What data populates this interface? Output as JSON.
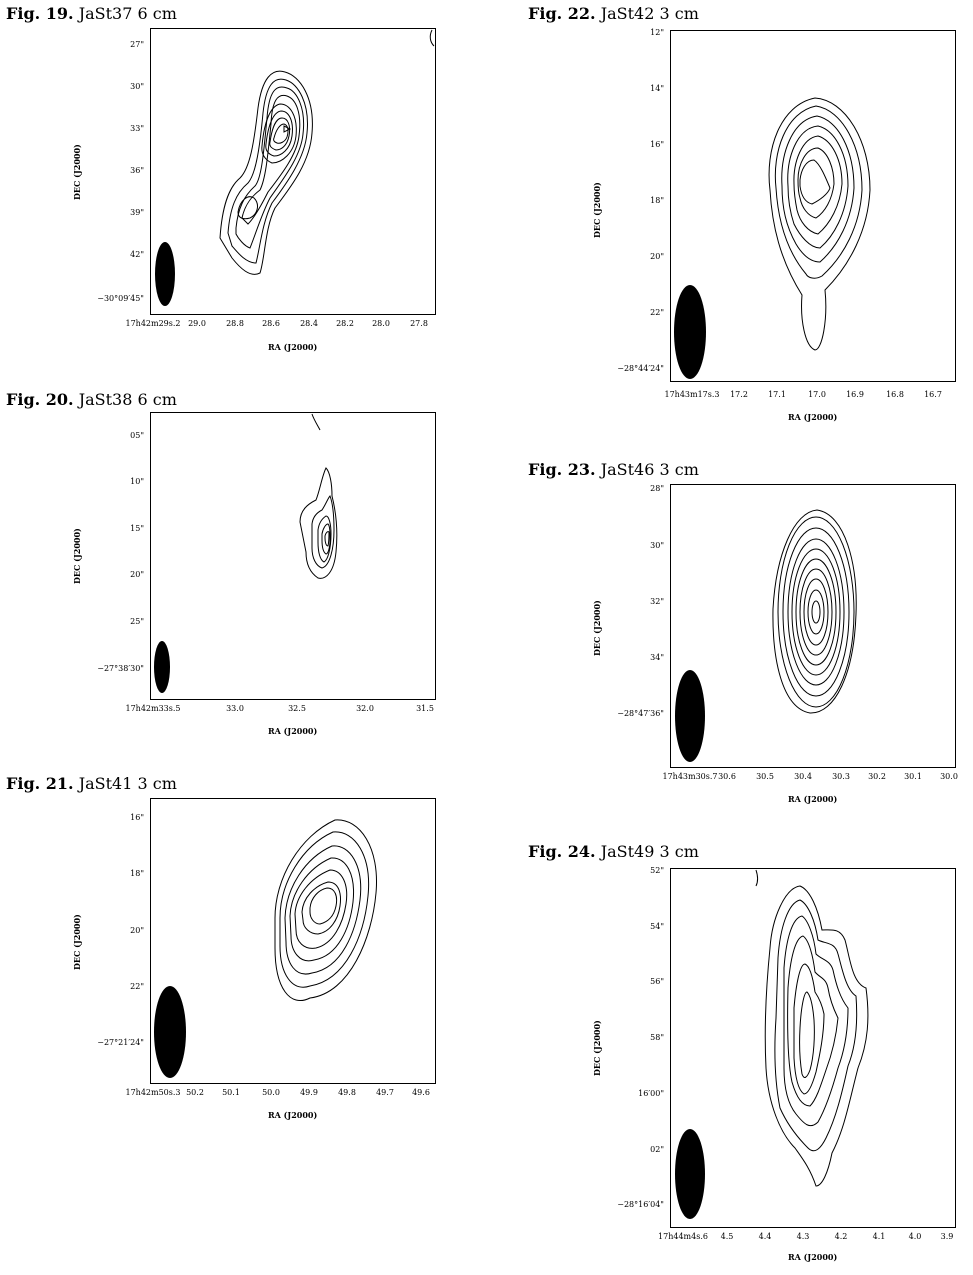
{
  "figures": [
    {
      "id": "f19",
      "caption_num": "Fig. 19.",
      "caption_text": "JaSt37 6 cm",
      "yticks": [
        "27\"",
        "30\"",
        "33\"",
        "36\"",
        "39\"",
        "42\"",
        "−30°09′45\""
      ],
      "xticks": [
        "17h42m29s.2",
        "29.0",
        "28.8",
        "28.6",
        "28.4",
        "28.2",
        "28.0",
        "27.8"
      ],
      "xlabel": "RA (J2000)",
      "ylabel": "DEC (J2000)"
    },
    {
      "id": "f20",
      "caption_num": "Fig. 20.",
      "caption_text": "JaSt38 6 cm",
      "yticks": [
        "05\"",
        "10\"",
        "15\"",
        "20\"",
        "25\"",
        "−27°38′30\""
      ],
      "xticks": [
        "17h42m33s.5",
        "33.0",
        "32.5",
        "32.0",
        "31.5"
      ],
      "xlabel": "RA (J2000)",
      "ylabel": "DEC (J2000)"
    },
    {
      "id": "f21",
      "caption_num": "Fig. 21.",
      "caption_text": "JaSt41 3 cm",
      "yticks": [
        "16\"",
        "18\"",
        "20\"",
        "22\"",
        "−27°21′24\""
      ],
      "xticks": [
        "17h42m50s.3",
        "50.2",
        "50.1",
        "50.0",
        "49.9",
        "49.8",
        "49.7",
        "49.6"
      ],
      "xlabel": "RA (J2000)",
      "ylabel": "DEC (J2000)"
    },
    {
      "id": "f22",
      "caption_num": "Fig. 22.",
      "caption_text": "JaSt42 3 cm",
      "yticks": [
        "12\"",
        "14\"",
        "16\"",
        "18\"",
        "20\"",
        "22\"",
        "−28°44′24\""
      ],
      "xticks": [
        "17h43m17s.3",
        "17.2",
        "17.1",
        "17.0",
        "16.9",
        "16.8",
        "16.7"
      ],
      "xlabel": "RA (J2000)",
      "ylabel": "DEC (J2000)"
    },
    {
      "id": "f23",
      "caption_num": "Fig. 23.",
      "caption_text": "JaSt46 3 cm",
      "yticks": [
        "28\"",
        "30\"",
        "32\"",
        "34\"",
        "−28°47′36\""
      ],
      "xticks": [
        "17h43m30s.7",
        "30.6",
        "30.5",
        "30.4",
        "30.3",
        "30.2",
        "30.1",
        "30.0"
      ],
      "xlabel": "RA (J2000)",
      "ylabel": "DEC (J2000)"
    },
    {
      "id": "f24",
      "caption_num": "Fig. 24.",
      "caption_text": "JaSt49 3 cm",
      "yticks": [
        "52\"",
        "54\"",
        "56\"",
        "58\"",
        "16′00\"",
        "02\"",
        "−28°16′04\""
      ],
      "xticks": [
        "17h44m4s.6",
        "4.5",
        "4.4",
        "4.3",
        "4.2",
        "4.1",
        "4.0",
        "3.9"
      ],
      "xlabel": "RA (J2000)",
      "ylabel": "DEC (J2000)"
    }
  ]
}
